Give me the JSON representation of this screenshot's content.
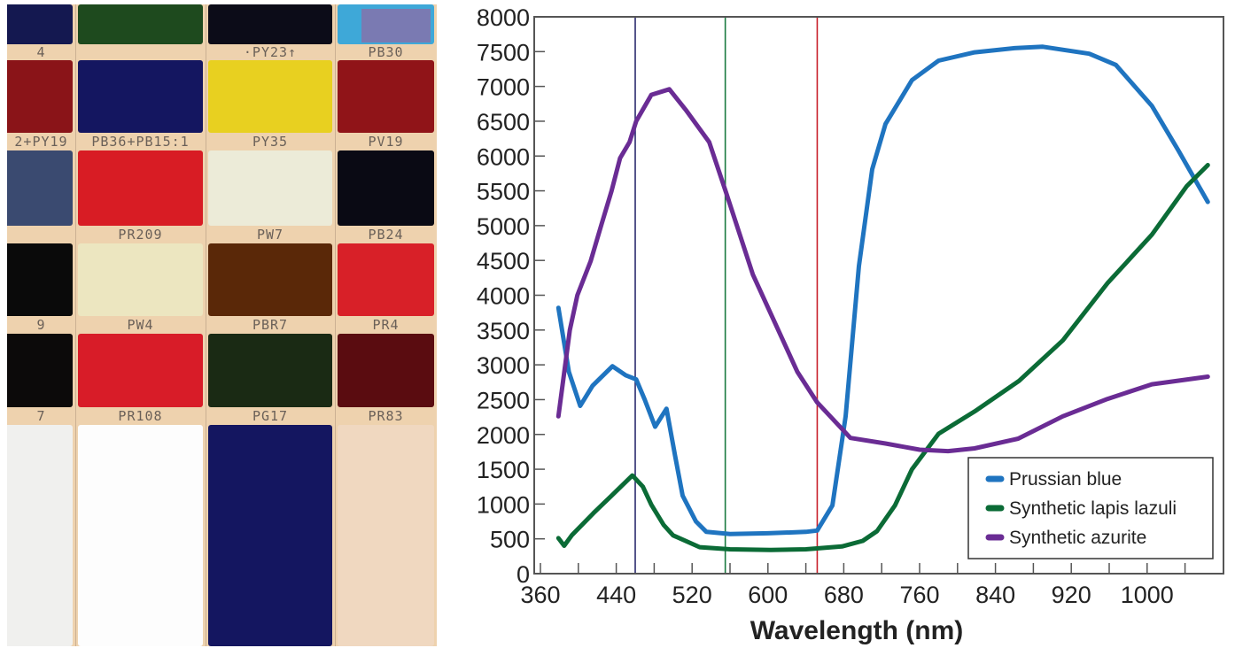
{
  "photo": {
    "rows": [
      {
        "labels": [
          "",
          "",
          "",
          ""
        ],
        "colors": [
          "#141850",
          "#1e4a1e",
          "#0c0c18",
          "#3ea8d8"
        ]
      },
      {
        "labels": [
          "4",
          "",
          "·PY23↑",
          "PB30"
        ],
        "colors": [
          "#8a1418",
          "#141660",
          "#e8d020",
          "#901418"
        ]
      },
      {
        "labels": [
          "2+PY19",
          "PB36+PB15:1",
          "PY35",
          "PV19"
        ],
        "colors": [
          "#3a4a70",
          "#d81c24",
          "#ecebd8",
          "#0a0a14"
        ]
      },
      {
        "labels": [
          "",
          "PR209",
          "PW7",
          "PB24"
        ],
        "colors": [
          "#0a0a0a",
          "#ece6c0",
          "#5a2808",
          "#d82028"
        ]
      },
      {
        "labels": [
          "9",
          "PW4",
          "PBR7",
          "PR4"
        ],
        "colors": [
          "#0c0a0a",
          "#d81c28",
          "#1a2a14",
          "#5a0c10"
        ]
      },
      {
        "labels": [
          "7",
          "PR108",
          "PG17",
          "PR83"
        ],
        "colors": [
          "#f0f0ee",
          "#fdfdfd",
          "#141660",
          "#f0d8c0"
        ]
      }
    ]
  },
  "chart_data": {
    "type": "line",
    "title": "",
    "xlabel": "Wavelength (nm)",
    "ylabel": "",
    "xlim": [
      353,
      1080
    ],
    "ylim": [
      0,
      8000
    ],
    "xticks": [
      360,
      440,
      520,
      600,
      680,
      760,
      840,
      920,
      1000
    ],
    "yticks": [
      0,
      500,
      1000,
      1500,
      2000,
      2500,
      3000,
      3500,
      4000,
      4500,
      5000,
      5500,
      6000,
      6500,
      7000,
      7500,
      8000
    ],
    "grid": false,
    "legend_position": "bottom-right",
    "reference_lines": [
      {
        "x": 460,
        "color": "#2a2a6e"
      },
      {
        "x": 555,
        "color": "#1a7a40"
      },
      {
        "x": 652,
        "color": "#c8202a"
      }
    ],
    "series": [
      {
        "name": "Prussian blue",
        "color": "#1f74c0",
        "x": [
          379,
          390,
          402,
          415,
          436,
          450,
          461,
          470,
          481,
          493,
          502,
          510,
          524,
          535,
          560,
          600,
          640,
          652,
          668,
          682,
          696,
          710,
          724,
          752,
          780,
          818,
          860,
          890,
          939,
          967,
          1005,
          1033,
          1064
        ],
        "y": [
          3820,
          2900,
          2410,
          2700,
          2980,
          2850,
          2790,
          2500,
          2110,
          2370,
          1700,
          1120,
          750,
          600,
          570,
          580,
          600,
          620,
          980,
          2260,
          4420,
          5810,
          6460,
          7090,
          7370,
          7490,
          7550,
          7570,
          7470,
          7310,
          6720,
          6080,
          5340
        ]
      },
      {
        "name": "Synthetic lapis lazuli",
        "color": "#0b6b36",
        "x": [
          379,
          385,
          393,
          416,
          435,
          457,
          468,
          477,
          490,
          500,
          528,
          560,
          603,
          640,
          678,
          700,
          715,
          734,
          752,
          780,
          818,
          865,
          911,
          958,
          1005,
          1042,
          1064
        ],
        "y": [
          510,
          400,
          550,
          870,
          1120,
          1410,
          1250,
          990,
          700,
          550,
          380,
          350,
          340,
          350,
          390,
          470,
          610,
          980,
          1500,
          2010,
          2330,
          2770,
          3350,
          4170,
          4870,
          5570,
          5870
        ]
      },
      {
        "name": "Synthetic azurite",
        "color": "#6a2c94",
        "x": [
          379,
          391,
          399,
          413,
          424,
          435,
          444,
          454,
          461,
          477,
          496,
          514,
          538,
          556,
          584,
          631,
          652,
          687,
          724,
          760,
          790,
          818,
          864,
          911,
          958,
          1005,
          1064
        ],
        "y": [
          2260,
          3500,
          4000,
          4490,
          5000,
          5500,
          5970,
          6200,
          6500,
          6880,
          6960,
          6650,
          6200,
          5470,
          4300,
          2900,
          2460,
          1950,
          1870,
          1780,
          1760,
          1800,
          1940,
          2260,
          2510,
          2720,
          2830
        ]
      }
    ]
  }
}
